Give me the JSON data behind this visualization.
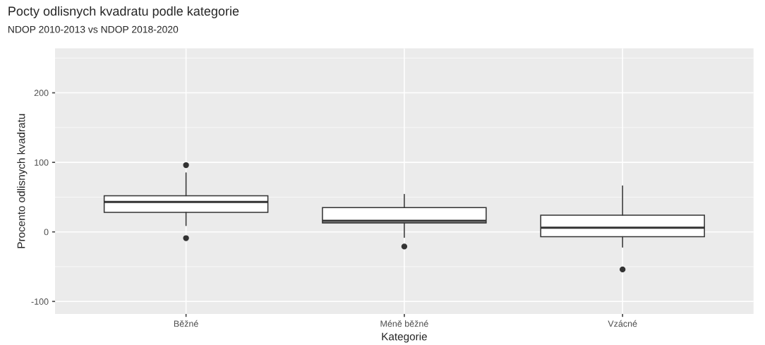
{
  "chart_data": {
    "type": "box",
    "title": "Pocty odlisnych kvadratu podle kategorie",
    "subtitle": "NDOP 2010-2013 vs NDOP 2018-2020",
    "xlabel": "Kategorie",
    "ylabel": "Procento odlisnych kvadratu",
    "categories": [
      "Běžné",
      "Méně běžné",
      "Vzácné"
    ],
    "boxes": [
      {
        "low": 9,
        "q1": 28,
        "median": 43,
        "q3": 52,
        "high": 85,
        "outliers": [
          96,
          -9
        ]
      },
      {
        "low": -8,
        "q1": 13,
        "median": 16,
        "q3": 35,
        "high": 54,
        "outliers": [
          -21
        ]
      },
      {
        "low": -22,
        "q1": -7,
        "median": 6,
        "q3": 24,
        "high": 66,
        "outliers": [
          -54
        ]
      }
    ],
    "ylim": [
      -118,
      264
    ],
    "yticks": [
      -100,
      0,
      100,
      200
    ],
    "grid": true,
    "legend": false
  }
}
